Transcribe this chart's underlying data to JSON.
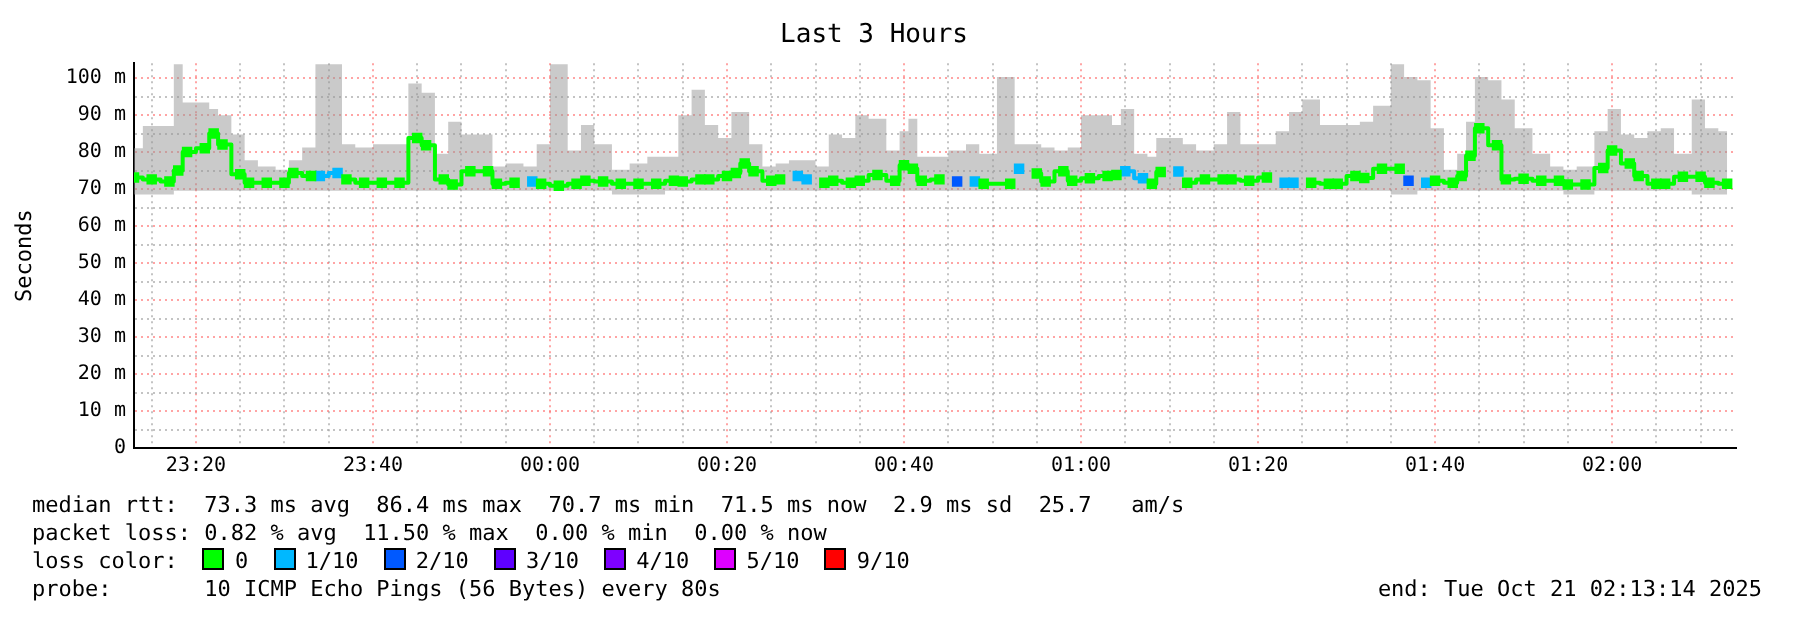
{
  "chart_data": {
    "type": "step",
    "marker": "square",
    "title": "Last 3 Hours",
    "ylabel": "Seconds",
    "legend_title": "loss color:",
    "legend": "bottom",
    "grid": true,
    "annotations": [
      "median rtt:  73.3 ms avg  86.4 ms max  70.7 ms min  71.5 ms now  2.9 ms sd  25.7   am/s",
      "packet loss: 0.82 % avg  11.50 % max  0.00 % min  0.00 % now",
      "probe:       10 ICMP Echo Pings (56 Bytes) every 80s",
      "end: Tue Oct 21 02:13:14 2025"
    ],
    "xlim": [
      "2025-10-20T23:13",
      "2025-10-21T02:14"
    ],
    "xticks": [
      {
        "value": "2025-10-20T23:15",
        "label": null
      },
      {
        "value": "2025-10-20T23:20",
        "label": "23:20"
      },
      {
        "value": "2025-10-20T23:25",
        "label": null
      },
      {
        "value": "2025-10-20T23:30",
        "label": null
      },
      {
        "value": "2025-10-20T23:35",
        "label": null
      },
      {
        "value": "2025-10-20T23:40",
        "label": "23:40"
      },
      {
        "value": "2025-10-20T23:45",
        "label": null
      },
      {
        "value": "2025-10-20T23:50",
        "label": null
      },
      {
        "value": "2025-10-20T23:55",
        "label": null
      },
      {
        "value": "2025-10-21T00:00",
        "label": "00:00"
      },
      {
        "value": "2025-10-21T00:05",
        "label": null
      },
      {
        "value": "2025-10-21T00:10",
        "label": null
      },
      {
        "value": "2025-10-21T00:15",
        "label": null
      },
      {
        "value": "2025-10-21T00:20",
        "label": "00:20"
      },
      {
        "value": "2025-10-21T00:25",
        "label": null
      },
      {
        "value": "2025-10-21T00:30",
        "label": null
      },
      {
        "value": "2025-10-21T00:35",
        "label": null
      },
      {
        "value": "2025-10-21T00:40",
        "label": "00:40"
      },
      {
        "value": "2025-10-21T00:45",
        "label": null
      },
      {
        "value": "2025-10-21T00:50",
        "label": null
      },
      {
        "value": "2025-10-21T00:55",
        "label": null
      },
      {
        "value": "2025-10-21T01:00",
        "label": "01:00"
      },
      {
        "value": "2025-10-21T01:05",
        "label": null
      },
      {
        "value": "2025-10-21T01:10",
        "label": null
      },
      {
        "value": "2025-10-21T01:15",
        "label": null
      },
      {
        "value": "2025-10-21T01:20",
        "label": "01:20"
      },
      {
        "value": "2025-10-21T01:25",
        "label": null
      },
      {
        "value": "2025-10-21T01:30",
        "label": null
      },
      {
        "value": "2025-10-21T01:35",
        "label": null
      },
      {
        "value": "2025-10-21T01:40",
        "label": "01:40"
      },
      {
        "value": "2025-10-21T01:45",
        "label": null
      },
      {
        "value": "2025-10-21T01:50",
        "label": null
      },
      {
        "value": "2025-10-21T01:55",
        "label": null
      },
      {
        "value": "2025-10-21T02:00",
        "label": "02:00"
      },
      {
        "value": "2025-10-21T02:05",
        "label": null
      },
      {
        "value": "2025-10-21T02:10",
        "label": null
      }
    ],
    "ylim": [
      0,
      104
    ],
    "yticks": [
      0,
      {
        "value": 5,
        "label": null
      },
      {
        "value": 10,
        "label": "10 m"
      },
      {
        "value": 15,
        "label": null
      },
      {
        "value": 20,
        "label": "20 m"
      },
      {
        "value": 25,
        "label": null
      },
      {
        "value": 30,
        "label": "30 m"
      },
      {
        "value": 35,
        "label": null
      },
      {
        "value": 40,
        "label": "40 m"
      },
      {
        "value": 45,
        "label": null
      },
      {
        "value": 50,
        "label": "50 m"
      },
      {
        "value": 55,
        "label": null
      },
      {
        "value": 60,
        "label": "60 m"
      },
      {
        "value": 65,
        "label": null
      },
      {
        "value": 70,
        "label": "70 m"
      },
      {
        "value": 75,
        "label": null
      },
      {
        "value": 80,
        "label": "80 m"
      },
      {
        "value": 85,
        "label": null
      },
      {
        "value": 90,
        "label": "90 m"
      },
      {
        "value": 95,
        "label": null
      },
      {
        "value": 100,
        "label": "100 m"
      }
    ],
    "x": [
      "2025-10-20T23:13",
      "2025-10-20T23:15",
      "2025-10-20T23:17",
      "2025-10-20T23:18",
      "2025-10-20T23:19",
      "2025-10-20T23:21",
      "2025-10-20T23:22",
      "2025-10-20T23:23",
      "2025-10-20T23:25",
      "2025-10-20T23:26",
      "2025-10-20T23:28",
      "2025-10-20T23:30",
      "2025-10-20T23:31",
      "2025-10-20T23:33",
      "2025-10-20T23:34",
      "2025-10-20T23:36",
      "2025-10-20T23:37",
      "2025-10-20T23:39",
      "2025-10-20T23:41",
      "2025-10-20T23:43",
      "2025-10-20T23:45",
      "2025-10-20T23:46",
      "2025-10-20T23:48",
      "2025-10-20T23:49",
      "2025-10-20T23:51",
      "2025-10-20T23:53",
      "2025-10-20T23:54",
      "2025-10-20T23:56",
      "2025-10-20T23:58",
      "2025-10-20T23:59",
      "2025-10-21T00:01",
      "2025-10-21T00:03",
      "2025-10-21T00:04",
      "2025-10-21T00:06",
      "2025-10-21T00:08",
      "2025-10-21T00:10",
      "2025-10-21T00:12",
      "2025-10-21T00:14",
      "2025-10-21T00:15",
      "2025-10-21T00:17",
      "2025-10-21T00:18",
      "2025-10-21T00:20",
      "2025-10-21T00:21",
      "2025-10-21T00:22",
      "2025-10-21T00:23",
      "2025-10-21T00:25",
      "2025-10-21T00:26",
      "2025-10-21T00:28",
      "2025-10-21T00:29",
      "2025-10-21T00:31",
      "2025-10-21T00:32",
      "2025-10-21T00:34",
      "2025-10-21T00:35",
      "2025-10-21T00:37",
      "2025-10-21T00:39",
      "2025-10-21T00:40",
      "2025-10-21T00:41",
      "2025-10-21T00:42",
      "2025-10-21T00:44",
      "2025-10-21T00:46",
      "2025-10-21T00:48",
      "2025-10-21T00:49",
      "2025-10-21T00:52",
      "2025-10-21T00:53",
      "2025-10-21T00:55",
      "2025-10-21T00:56",
      "2025-10-21T00:58",
      "2025-10-21T00:59",
      "2025-10-21T01:01",
      "2025-10-21T01:03",
      "2025-10-21T01:04",
      "2025-10-21T01:05",
      "2025-10-21T01:07",
      "2025-10-21T01:08",
      "2025-10-21T01:09",
      "2025-10-21T01:11",
      "2025-10-21T01:12",
      "2025-10-21T01:14",
      "2025-10-21T01:16",
      "2025-10-21T01:17",
      "2025-10-21T01:19",
      "2025-10-21T01:21",
      "2025-10-21T01:23",
      "2025-10-21T01:24",
      "2025-10-21T01:26",
      "2025-10-21T01:28",
      "2025-10-21T01:29",
      "2025-10-21T01:31",
      "2025-10-21T01:32",
      "2025-10-21T01:34",
      "2025-10-21T01:36",
      "2025-10-21T01:37",
      "2025-10-21T01:39",
      "2025-10-21T01:40",
      "2025-10-21T01:42",
      "2025-10-21T01:43",
      "2025-10-21T01:44",
      "2025-10-21T01:45",
      "2025-10-21T01:47",
      "2025-10-21T01:48",
      "2025-10-21T01:50",
      "2025-10-21T01:52",
      "2025-10-21T01:54",
      "2025-10-21T01:55",
      "2025-10-21T01:57",
      "2025-10-21T01:59",
      "2025-10-21T02:00",
      "2025-10-21T02:02",
      "2025-10-21T02:03",
      "2025-10-21T02:05",
      "2025-10-21T02:06",
      "2025-10-21T02:08",
      "2025-10-21T02:10",
      "2025-10-21T02:11",
      "2025-10-21T02:13"
    ],
    "series": [
      {
        "name": "0",
        "color": "#00ff00",
        "values": [
          73.1,
          72.6,
          72,
          75,
          80,
          81,
          85,
          82,
          74,
          71.7,
          71.7,
          71.7,
          74.3,
          73.5,
          null,
          null,
          72.6,
          71.7,
          71.7,
          71.7,
          83.8,
          81.8,
          72.6,
          71.2,
          74.8,
          74.8,
          71.4,
          71.7,
          null,
          71.4,
          70.9,
          71.4,
          72.2,
          72,
          71.4,
          71.4,
          71.4,
          72.2,
          72,
          72.6,
          72.6,
          73.5,
          74.3,
          76.9,
          74.8,
          72.2,
          72.6,
          null,
          null,
          71.7,
          72.2,
          71.7,
          72.2,
          73.8,
          72.2,
          76.4,
          75.5,
          72.2,
          72.6,
          null,
          null,
          71.4,
          71.4,
          null,
          74.2,
          72,
          74.8,
          72.2,
          72.9,
          73.5,
          73.8,
          null,
          null,
          71.4,
          74.6,
          null,
          71.7,
          72.6,
          72.6,
          72.6,
          72.2,
          73.1,
          null,
          null,
          71.7,
          71.4,
          71.4,
          73.5,
          73,
          75.5,
          75.5,
          null,
          null,
          72.2,
          71.7,
          73.5,
          79,
          86.4,
          81.8,
          72.6,
          72.8,
          72.2,
          72.2,
          71.2,
          71.2,
          75.7,
          80.4,
          76.9,
          73.5,
          71.4,
          71.4,
          73.3,
          73.3,
          71.7,
          71.4
        ],
        "upper": [
          81,
          87,
          87,
          103.7,
          93.4,
          93.4,
          91.6,
          89.9,
          84.7,
          77.8,
          76.1,
          75.2,
          77.8,
          81.2,
          103.7,
          103.7,
          82.1,
          81.2,
          82.1,
          82.1,
          98.5,
          96,
          79.5,
          88.2,
          84.7,
          84.7,
          76.1,
          76.9,
          76.1,
          82.1,
          103.7,
          80.4,
          87.3,
          82.1,
          75.2,
          76.9,
          78.7,
          78.7,
          89.9,
          96.8,
          87.3,
          83.8,
          90.8,
          90.8,
          82.1,
          76.1,
          76.9,
          77.8,
          77.8,
          76.1,
          84.7,
          83.8,
          89.9,
          89,
          80.4,
          85.6,
          89,
          78.7,
          78.7,
          80.4,
          82.1,
          79.5,
          100.3,
          82.1,
          82.1,
          81.2,
          80.4,
          81.2,
          89.9,
          89.9,
          87.3,
          91.6,
          79.5,
          78.7,
          83.8,
          83.8,
          82.1,
          80.4,
          82.1,
          90.8,
          82.1,
          82.1,
          85.6,
          90.8,
          94.2,
          87.3,
          87.3,
          87.3,
          88.2,
          92.5,
          103.7,
          100.3,
          99.4,
          86.4,
          75.2,
          79.5,
          88.2,
          100.3,
          99.4,
          94.2,
          86.4,
          79.5,
          76.1,
          75.2,
          76.1,
          85.6,
          91.6,
          84.7,
          83.8,
          85.6,
          86.4,
          79.5,
          94.2,
          86.4,
          85.6
        ],
        "lower": [
          68.5,
          68.5,
          68.5,
          69.5,
          69.5,
          69.5,
          69.5,
          69.5,
          69.5,
          69.5,
          69.5,
          69.5,
          69.5,
          69.5,
          69.5,
          69.5,
          69.5,
          69.5,
          69.5,
          69.5,
          69.5,
          69.5,
          69.5,
          69.5,
          69.5,
          69.5,
          69.5,
          69.5,
          69.5,
          69.5,
          69.5,
          69.5,
          69.5,
          69.5,
          68.5,
          68.5,
          68.5,
          69.5,
          69.5,
          69.5,
          69.5,
          69.5,
          69.5,
          69.5,
          69.5,
          69.5,
          69.5,
          69.5,
          69.5,
          69.5,
          69.5,
          69.5,
          69.5,
          69.5,
          69.5,
          69.5,
          69.5,
          69.5,
          69.5,
          69.5,
          69.5,
          69.5,
          69.5,
          69.5,
          69.5,
          69.5,
          69.5,
          69.5,
          69.5,
          69.5,
          69.5,
          69.5,
          69.5,
          69.5,
          69.5,
          69.5,
          69.5,
          69.5,
          69.5,
          69.5,
          69.5,
          69.5,
          69.5,
          69.5,
          69.5,
          69.5,
          69.5,
          69.5,
          69.5,
          69.5,
          68.5,
          68.5,
          69.5,
          69.5,
          69.5,
          69.5,
          69.5,
          69.5,
          69.5,
          69.5,
          69.5,
          69.5,
          69.5,
          68.5,
          68.5,
          69.5,
          69.5,
          69.5,
          69.5,
          69.5,
          69.5,
          69.5,
          68.5,
          68.5,
          68.5
        ]
      },
      {
        "name": "1/10",
        "color": "#00b8ff",
        "values": [
          null,
          null,
          null,
          null,
          null,
          null,
          null,
          null,
          null,
          null,
          null,
          null,
          null,
          null,
          73.5,
          74.3,
          null,
          null,
          null,
          null,
          null,
          null,
          null,
          null,
          null,
          null,
          null,
          null,
          72,
          null,
          null,
          null,
          null,
          null,
          null,
          null,
          null,
          null,
          null,
          null,
          null,
          null,
          null,
          null,
          null,
          null,
          null,
          73.5,
          72.6,
          null,
          null,
          null,
          null,
          null,
          null,
          null,
          null,
          null,
          null,
          null,
          72,
          null,
          null,
          75.5,
          null,
          null,
          null,
          null,
          null,
          null,
          null,
          74.8,
          72.9,
          null,
          null,
          74.7,
          null,
          null,
          null,
          null,
          null,
          null,
          71.7,
          71.7,
          null,
          null,
          null,
          null,
          null,
          null,
          null,
          null,
          71.7,
          null,
          null,
          null,
          null,
          null,
          null,
          null,
          null,
          null,
          null,
          null,
          null,
          null,
          null,
          null,
          null,
          null,
          null,
          null,
          null,
          null,
          null
        ]
      },
      {
        "name": "2/10",
        "color": "#0059ff",
        "type": "scatter",
        "values": [
          null,
          null,
          null,
          null,
          null,
          null,
          null,
          null,
          null,
          null,
          null,
          null,
          null,
          null,
          null,
          null,
          null,
          null,
          null,
          null,
          null,
          null,
          null,
          null,
          null,
          null,
          null,
          null,
          null,
          null,
          null,
          null,
          null,
          null,
          null,
          null,
          null,
          null,
          null,
          null,
          null,
          null,
          null,
          null,
          null,
          null,
          null,
          null,
          null,
          null,
          null,
          null,
          null,
          null,
          null,
          null,
          null,
          null,
          null,
          72,
          null,
          null,
          null,
          null,
          null,
          null,
          null,
          null,
          null,
          null,
          null,
          null,
          null,
          null,
          null,
          null,
          null,
          null,
          null,
          null,
          null,
          null,
          null,
          null,
          null,
          null,
          null,
          null,
          null,
          null,
          null,
          72.2,
          null,
          null,
          null,
          null,
          null,
          null,
          null,
          null,
          null,
          null,
          null,
          null,
          null,
          null,
          null,
          null,
          null,
          null,
          null,
          null,
          null,
          null,
          null
        ]
      },
      {
        "name": "3/10",
        "color": "#5e00ff",
        "values": [
          null,
          null,
          null,
          null,
          null,
          null,
          null,
          null,
          null,
          null,
          null,
          null,
          null,
          null,
          null,
          null,
          null,
          null,
          null,
          null,
          null,
          null,
          null,
          null,
          null,
          null,
          null,
          null,
          null,
          null,
          null,
          null,
          null,
          null,
          null,
          null,
          null,
          null,
          null,
          null,
          null,
          null,
          null,
          null,
          null,
          null,
          null,
          null,
          null,
          null,
          null,
          null,
          null,
          null,
          null,
          null,
          null,
          null,
          null,
          null,
          null,
          null,
          null,
          null,
          null,
          null,
          null,
          null,
          null,
          null,
          null,
          null,
          null,
          null,
          null,
          null,
          null,
          null,
          null,
          null,
          null,
          null,
          null,
          null,
          null,
          null,
          null,
          null,
          null,
          null,
          null,
          null,
          null,
          null,
          null,
          null,
          null,
          null,
          null,
          null,
          null,
          null,
          null,
          null,
          null,
          null,
          null,
          null,
          null,
          null,
          null,
          null,
          null,
          null,
          null
        ]
      },
      {
        "name": "4/10",
        "color": "#7e00ff",
        "values": [
          null,
          null,
          null,
          null,
          null,
          null,
          null,
          null,
          null,
          null,
          null,
          null,
          null,
          null,
          null,
          null,
          null,
          null,
          null,
          null,
          null,
          null,
          null,
          null,
          null,
          null,
          null,
          null,
          null,
          null,
          null,
          null,
          null,
          null,
          null,
          null,
          null,
          null,
          null,
          null,
          null,
          null,
          null,
          null,
          null,
          null,
          null,
          null,
          null,
          null,
          null,
          null,
          null,
          null,
          null,
          null,
          null,
          null,
          null,
          null,
          null,
          null,
          null,
          null,
          null,
          null,
          null,
          null,
          null,
          null,
          null,
          null,
          null,
          null,
          null,
          null,
          null,
          null,
          null,
          null,
          null,
          null,
          null,
          null,
          null,
          null,
          null,
          null,
          null,
          null,
          null,
          null,
          null,
          null,
          null,
          null,
          null,
          null,
          null,
          null,
          null,
          null,
          null,
          null,
          null,
          null,
          null,
          null,
          null,
          null,
          null,
          null,
          null,
          null,
          null
        ]
      },
      {
        "name": "5/10",
        "color": "#dd00ff",
        "values": [
          null,
          null,
          null,
          null,
          null,
          null,
          null,
          null,
          null,
          null,
          null,
          null,
          null,
          null,
          null,
          null,
          null,
          null,
          null,
          null,
          null,
          null,
          null,
          null,
          null,
          null,
          null,
          null,
          null,
          null,
          null,
          null,
          null,
          null,
          null,
          null,
          null,
          null,
          null,
          null,
          null,
          null,
          null,
          null,
          null,
          null,
          null,
          null,
          null,
          null,
          null,
          null,
          null,
          null,
          null,
          null,
          null,
          null,
          null,
          null,
          null,
          null,
          null,
          null,
          null,
          null,
          null,
          null,
          null,
          null,
          null,
          null,
          null,
          null,
          null,
          null,
          null,
          null,
          null,
          null,
          null,
          null,
          null,
          null,
          null,
          null,
          null,
          null,
          null,
          null,
          null,
          null,
          null,
          null,
          null,
          null,
          null,
          null,
          null,
          null,
          null,
          null,
          null,
          null,
          null,
          null,
          null,
          null,
          null,
          null,
          null,
          null,
          null,
          null,
          null
        ]
      },
      {
        "name": "9/10",
        "color": "#ff0000",
        "values": [
          null,
          null,
          null,
          null,
          null,
          null,
          null,
          null,
          null,
          null,
          null,
          null,
          null,
          null,
          null,
          null,
          null,
          null,
          null,
          null,
          null,
          null,
          null,
          null,
          null,
          null,
          null,
          null,
          null,
          null,
          null,
          null,
          null,
          null,
          null,
          null,
          null,
          null,
          null,
          null,
          null,
          null,
          null,
          null,
          null,
          null,
          null,
          null,
          null,
          null,
          null,
          null,
          null,
          null,
          null,
          null,
          null,
          null,
          null,
          null,
          null,
          null,
          null,
          null,
          null,
          null,
          null,
          null,
          null,
          null,
          null,
          null,
          null,
          null,
          null,
          null,
          null,
          null,
          null,
          null,
          null,
          null,
          null,
          null,
          null,
          null,
          null,
          null,
          null,
          null,
          null,
          null,
          null,
          null,
          null,
          null,
          null,
          null,
          null,
          null,
          null,
          null,
          null,
          null,
          null,
          null,
          null,
          null,
          null,
          null,
          null,
          null,
          null,
          null,
          null
        ]
      }
    ]
  }
}
